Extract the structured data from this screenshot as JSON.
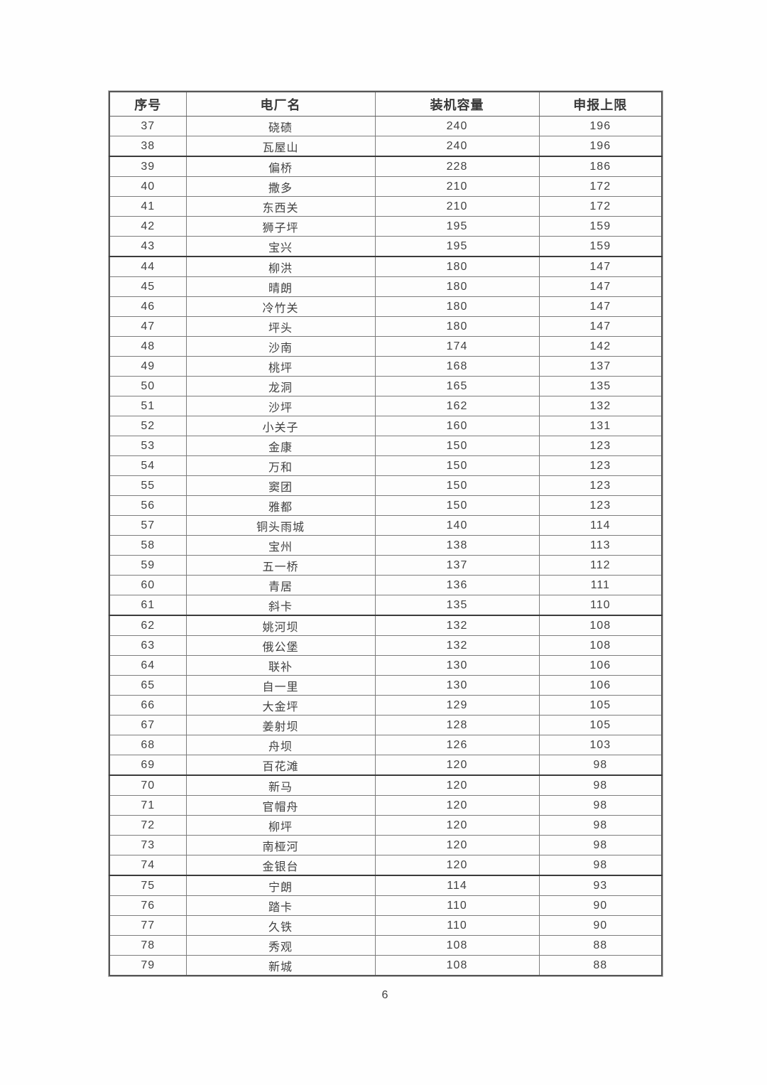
{
  "page": {
    "number": "6"
  },
  "colors": {
    "text": "#3d3d3d",
    "border": "#7d7d7d",
    "heavy_rule": "#3a3a3a",
    "background": "#fefefe"
  },
  "table": {
    "headers": [
      "序号",
      "电厂名",
      "装机容量",
      "申报上限"
    ],
    "rows": [
      [
        "37",
        "硗碛",
        "240",
        "196"
      ],
      [
        "38",
        "瓦屋山",
        "240",
        "196"
      ],
      [
        "39",
        "偏桥",
        "228",
        "186"
      ],
      [
        "40",
        "撒多",
        "210",
        "172"
      ],
      [
        "41",
        "东西关",
        "210",
        "172"
      ],
      [
        "42",
        "狮子坪",
        "195",
        "159"
      ],
      [
        "43",
        "宝兴",
        "195",
        "159"
      ],
      [
        "44",
        "柳洪",
        "180",
        "147"
      ],
      [
        "45",
        "晴朗",
        "180",
        "147"
      ],
      [
        "46",
        "冷竹关",
        "180",
        "147"
      ],
      [
        "47",
        "坪头",
        "180",
        "147"
      ],
      [
        "48",
        "沙南",
        "174",
        "142"
      ],
      [
        "49",
        "桃坪",
        "168",
        "137"
      ],
      [
        "50",
        "龙洞",
        "165",
        "135"
      ],
      [
        "51",
        "沙坪",
        "162",
        "132"
      ],
      [
        "52",
        "小关子",
        "160",
        "131"
      ],
      [
        "53",
        "金康",
        "150",
        "123"
      ],
      [
        "54",
        "万和",
        "150",
        "123"
      ],
      [
        "55",
        "窦团",
        "150",
        "123"
      ],
      [
        "56",
        "雅都",
        "150",
        "123"
      ],
      [
        "57",
        "铜头雨城",
        "140",
        "114"
      ],
      [
        "58",
        "宝州",
        "138",
        "113"
      ],
      [
        "59",
        "五一桥",
        "137",
        "112"
      ],
      [
        "60",
        "青居",
        "136",
        "111"
      ],
      [
        "61",
        "斜卡",
        "135",
        "110"
      ],
      [
        "62",
        "姚河坝",
        "132",
        "108"
      ],
      [
        "63",
        "俄公堡",
        "132",
        "108"
      ],
      [
        "64",
        "联补",
        "130",
        "106"
      ],
      [
        "65",
        "自一里",
        "130",
        "106"
      ],
      [
        "66",
        "大金坪",
        "129",
        "105"
      ],
      [
        "67",
        "姜射坝",
        "128",
        "105"
      ],
      [
        "68",
        "舟坝",
        "126",
        "103"
      ],
      [
        "69",
        "百花滩",
        "120",
        "98"
      ],
      [
        "70",
        "新马",
        "120",
        "98"
      ],
      [
        "71",
        "官帽舟",
        "120",
        "98"
      ],
      [
        "72",
        "柳坪",
        "120",
        "98"
      ],
      [
        "73",
        "南桠河",
        "120",
        "98"
      ],
      [
        "74",
        "金银台",
        "120",
        "98"
      ],
      [
        "75",
        "宁朗",
        "114",
        "93"
      ],
      [
        "76",
        "踏卡",
        "110",
        "90"
      ],
      [
        "77",
        "久铁",
        "110",
        "90"
      ],
      [
        "78",
        "秀观",
        "108",
        "88"
      ],
      [
        "79",
        "新城",
        "108",
        "88"
      ]
    ]
  }
}
